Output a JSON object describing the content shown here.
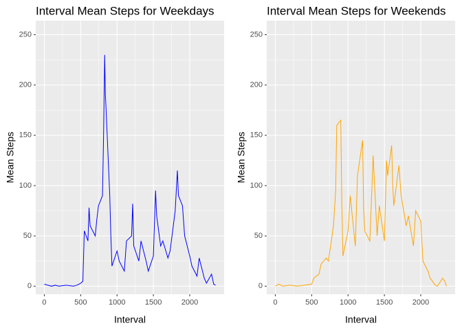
{
  "chart_data": [
    {
      "type": "line",
      "title": "Interval Mean Steps for Weekdays",
      "x_label": "Interval",
      "y_label": "Mean Steps",
      "color": "#0000ff",
      "x": [
        0,
        50,
        100,
        150,
        200,
        300,
        400,
        450,
        500,
        530,
        550,
        600,
        615,
        630,
        700,
        720,
        745,
        800,
        815,
        830,
        840,
        850,
        900,
        915,
        930,
        1000,
        1030,
        1100,
        1130,
        1200,
        1215,
        1230,
        1300,
        1330,
        1400,
        1430,
        1500,
        1530,
        1545,
        1600,
        1630,
        1700,
        1730,
        1800,
        1830,
        1845,
        1900,
        1930,
        2000,
        2030,
        2100,
        2130,
        2200,
        2230,
        2300,
        2330,
        2355
      ],
      "values": [
        2,
        1,
        0,
        1,
        0,
        1,
        0,
        1,
        3,
        5,
        55,
        45,
        78,
        60,
        50,
        65,
        80,
        90,
        150,
        230,
        190,
        175,
        90,
        50,
        20,
        35,
        25,
        15,
        45,
        50,
        82,
        40,
        25,
        45,
        25,
        15,
        30,
        95,
        70,
        40,
        45,
        28,
        35,
        75,
        115,
        90,
        80,
        50,
        30,
        20,
        10,
        28,
        8,
        3,
        12,
        2,
        1
      ],
      "xlim": [
        -118,
        2473
      ],
      "ylim": [
        -8,
        264
      ],
      "xticks": [
        0,
        500,
        1000,
        1500,
        2000
      ],
      "yticks": [
        0,
        50,
        100,
        150,
        200,
        250
      ],
      "grid": true
    },
    {
      "type": "line",
      "title": "Interval Mean Steps for Weekends",
      "x_label": "Interval",
      "y_label": "Mean Steps",
      "color": "#ffa500",
      "x": [
        0,
        50,
        100,
        200,
        300,
        400,
        500,
        530,
        600,
        630,
        700,
        730,
        800,
        830,
        845,
        900,
        915,
        930,
        1000,
        1030,
        1100,
        1130,
        1200,
        1215,
        1230,
        1300,
        1330,
        1345,
        1400,
        1430,
        1500,
        1530,
        1545,
        1600,
        1615,
        1630,
        1700,
        1730,
        1800,
        1830,
        1900,
        1930,
        2000,
        2030,
        2100,
        2130,
        2200,
        2230,
        2300,
        2330,
        2355
      ],
      "values": [
        0,
        2,
        0,
        1,
        0,
        1,
        2,
        8,
        12,
        22,
        28,
        25,
        60,
        95,
        160,
        165,
        80,
        30,
        55,
        90,
        40,
        110,
        145,
        75,
        55,
        45,
        100,
        130,
        50,
        80,
        45,
        125,
        110,
        140,
        100,
        80,
        120,
        90,
        60,
        70,
        40,
        75,
        65,
        25,
        15,
        8,
        1,
        0,
        8,
        5,
        0
      ],
      "xlim": [
        -118,
        2473
      ],
      "ylim": [
        -8,
        264
      ],
      "xticks": [
        0,
        500,
        1000,
        1500,
        2000
      ],
      "yticks": [
        0,
        50,
        100,
        150,
        200,
        250
      ],
      "grid": true
    }
  ]
}
